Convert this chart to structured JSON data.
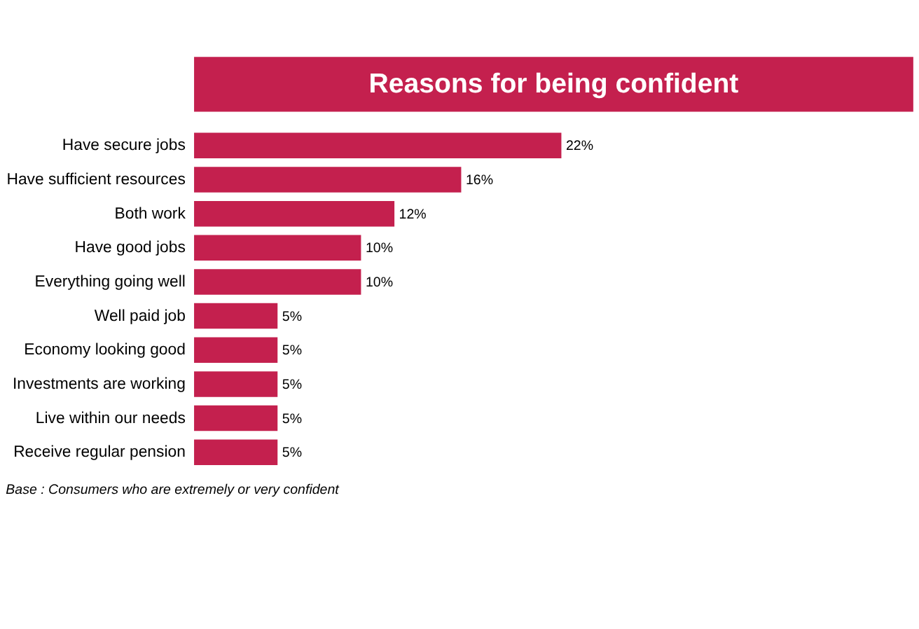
{
  "chart_data": {
    "type": "bar",
    "orientation": "horizontal",
    "title": "Reasons for being confident",
    "categories": [
      "Have secure jobs",
      "Have sufficient resources",
      "Both work",
      "Have good jobs",
      "Everything going well",
      "Well paid job",
      "Economy looking good",
      "Investments are working",
      "Live within our needs",
      "Receive regular pension"
    ],
    "values": [
      22,
      16,
      12,
      10,
      10,
      5,
      5,
      5,
      5,
      5
    ],
    "value_labels": [
      "22%",
      "16%",
      "12%",
      "10%",
      "10%",
      "5%",
      "5%",
      "5%",
      "5%",
      "5%"
    ],
    "color": "#c4204e",
    "annotations": [
      "Base : Consumers who are extremely or very confident"
    ]
  }
}
